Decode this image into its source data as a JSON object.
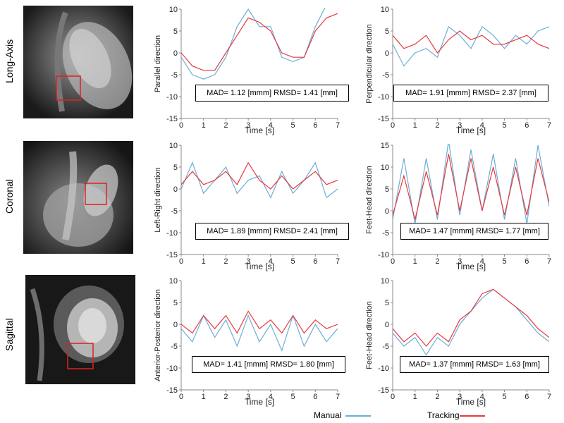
{
  "rows": [
    {
      "label": "Long-Axis"
    },
    {
      "label": "Coronal"
    },
    {
      "label": "Sagittal"
    }
  ],
  "legend": {
    "manual_label": "Manual",
    "manual_color": "#6aaed6",
    "tracking_label": "Tracking",
    "tracking_color": "#e8383d"
  },
  "chart_data": [
    {
      "type": "line",
      "ylabel": "Parallel direction",
      "xlabel": "Time [s]",
      "xlim": [
        0,
        7
      ],
      "ylim": [
        -15,
        10
      ],
      "xticks": [
        0,
        1,
        2,
        3,
        4,
        5,
        6,
        7
      ],
      "yticks": [
        -15,
        -10,
        -5,
        0,
        5,
        10
      ],
      "stats": "MAD= 1.12 [mmm] RMSD= 1.41 [mm]",
      "x": [
        0,
        0.5,
        1,
        1.5,
        2,
        2.5,
        3,
        3.5,
        4,
        4.5,
        5,
        5.5,
        6,
        6.5,
        7
      ],
      "series": [
        {
          "name": "Manual",
          "values": [
            -1,
            -5,
            -6,
            -5,
            -1,
            6,
            10,
            6,
            6,
            -1,
            -2,
            -1,
            6,
            11,
            11
          ]
        },
        {
          "name": "Tracking",
          "values": [
            0,
            -3,
            -4,
            -4,
            0,
            4,
            8,
            7,
            5,
            0,
            -1,
            -1,
            5,
            8,
            9
          ]
        }
      ]
    },
    {
      "type": "line",
      "ylabel": "Perpendicular direction",
      "xlabel": "Time [s]",
      "xlim": [
        0,
        7
      ],
      "ylim": [
        -15,
        10
      ],
      "xticks": [
        0,
        1,
        2,
        3,
        4,
        5,
        6,
        7
      ],
      "yticks": [
        -15,
        -10,
        -5,
        0,
        5,
        10
      ],
      "stats": "MAD= 1.91 [mmm] RMSD= 2.37 [mm]",
      "x": [
        0,
        0.5,
        1,
        1.5,
        2,
        2.5,
        3,
        3.5,
        4,
        4.5,
        5,
        5.5,
        6,
        6.5,
        7
      ],
      "series": [
        {
          "name": "Manual",
          "values": [
            2,
            -3,
            0,
            1,
            -1,
            6,
            4,
            1,
            6,
            4,
            1,
            4,
            2,
            5,
            6
          ]
        },
        {
          "name": "Tracking",
          "values": [
            4,
            1,
            2,
            4,
            0,
            3,
            5,
            3,
            4,
            2,
            2,
            3,
            4,
            2,
            1
          ]
        }
      ]
    },
    {
      "type": "line",
      "ylabel": "Left-Right direction",
      "xlabel": "Time [s]",
      "xlim": [
        0,
        7
      ],
      "ylim": [
        -15,
        10
      ],
      "xticks": [
        0,
        1,
        2,
        3,
        4,
        5,
        6,
        7
      ],
      "yticks": [
        -15,
        -10,
        -5,
        0,
        5,
        10
      ],
      "stats": "MAD= 1.89 [mmm] RMSD= 2.41 [mm]",
      "x": [
        0,
        0.5,
        1,
        1.5,
        2,
        2.5,
        3,
        3.5,
        4,
        4.5,
        5,
        5.5,
        6,
        6.5,
        7
      ],
      "series": [
        {
          "name": "Manual",
          "values": [
            0,
            6,
            -1,
            2,
            5,
            -1,
            2,
            3,
            -2,
            4,
            -1,
            2,
            6,
            -2,
            0
          ]
        },
        {
          "name": "Tracking",
          "values": [
            1,
            4,
            1,
            2,
            4,
            1,
            6,
            2,
            0,
            3,
            0,
            2,
            4,
            1,
            2
          ]
        }
      ]
    },
    {
      "type": "line",
      "ylabel": "Feet-Head direction",
      "xlabel": "Time [s]",
      "xlim": [
        0,
        7
      ],
      "ylim": [
        -10,
        15
      ],
      "xticks": [
        0,
        1,
        2,
        3,
        4,
        5,
        6,
        7
      ],
      "yticks": [
        -10,
        -5,
        0,
        5,
        10,
        15
      ],
      "stats": "MAD= 1.47 [mmm] RMSD= 1.77 [mm]",
      "x": [
        0,
        0.5,
        1,
        1.5,
        2,
        2.5,
        3,
        3.5,
        4,
        4.5,
        5,
        5.5,
        6,
        6.5,
        7
      ],
      "series": [
        {
          "name": "Manual",
          "values": [
            -2,
            12,
            -3,
            12,
            -2,
            16,
            -1,
            14,
            0,
            13,
            -2,
            12,
            -3,
            15,
            1
          ]
        },
        {
          "name": "Tracking",
          "values": [
            -1,
            8,
            -2,
            9,
            -1,
            13,
            0,
            12,
            0,
            10,
            -1,
            10,
            -1,
            12,
            2
          ]
        }
      ]
    },
    {
      "type": "line",
      "ylabel": "Anterior-Posterior direction",
      "xlabel": "Time [s]",
      "xlim": [
        0,
        7
      ],
      "ylim": [
        -15,
        10
      ],
      "xticks": [
        0,
        1,
        2,
        3,
        4,
        5,
        6,
        7
      ],
      "yticks": [
        -15,
        -10,
        -5,
        0,
        5,
        10
      ],
      "stats": "MAD= 1.41 [mmm] RMSD= 1.80 [mm]",
      "x": [
        0,
        0.5,
        1,
        1.5,
        2,
        2.5,
        3,
        3.5,
        4,
        4.5,
        5,
        5.5,
        6,
        6.5,
        7
      ],
      "series": [
        {
          "name": "Manual",
          "values": [
            -1,
            -4,
            2,
            -3,
            1,
            -5,
            2,
            -4,
            0,
            -6,
            2,
            -5,
            0,
            -4,
            -1
          ]
        },
        {
          "name": "Tracking",
          "values": [
            0,
            -2,
            2,
            -1,
            2,
            -2,
            3,
            -1,
            1,
            -2,
            2,
            -2,
            1,
            -1,
            0
          ]
        }
      ]
    },
    {
      "type": "line",
      "ylabel": "Feet-Head direction",
      "xlabel": "Time [s]",
      "xlim": [
        0,
        7
      ],
      "ylim": [
        -15,
        10
      ],
      "xticks": [
        0,
        1,
        2,
        3,
        4,
        5,
        6,
        7
      ],
      "yticks": [
        -15,
        -10,
        -5,
        0,
        5,
        10
      ],
      "stats": "MAD= 1.37 [mmm] RMSD= 1.63 [mm]",
      "x": [
        0,
        0.5,
        1,
        1.5,
        2,
        2.5,
        3,
        3.5,
        4,
        4.5,
        5,
        5.5,
        6,
        6.5,
        7
      ],
      "series": [
        {
          "name": "Manual",
          "values": [
            -2,
            -5,
            -3,
            -7,
            -3,
            -5,
            0,
            3,
            6,
            8,
            6,
            4,
            1,
            -2,
            -4
          ]
        },
        {
          "name": "Tracking",
          "values": [
            -1,
            -4,
            -2,
            -5,
            -2,
            -4,
            1,
            3,
            7,
            8,
            6,
            4,
            2,
            -1,
            -3
          ]
        }
      ]
    }
  ]
}
